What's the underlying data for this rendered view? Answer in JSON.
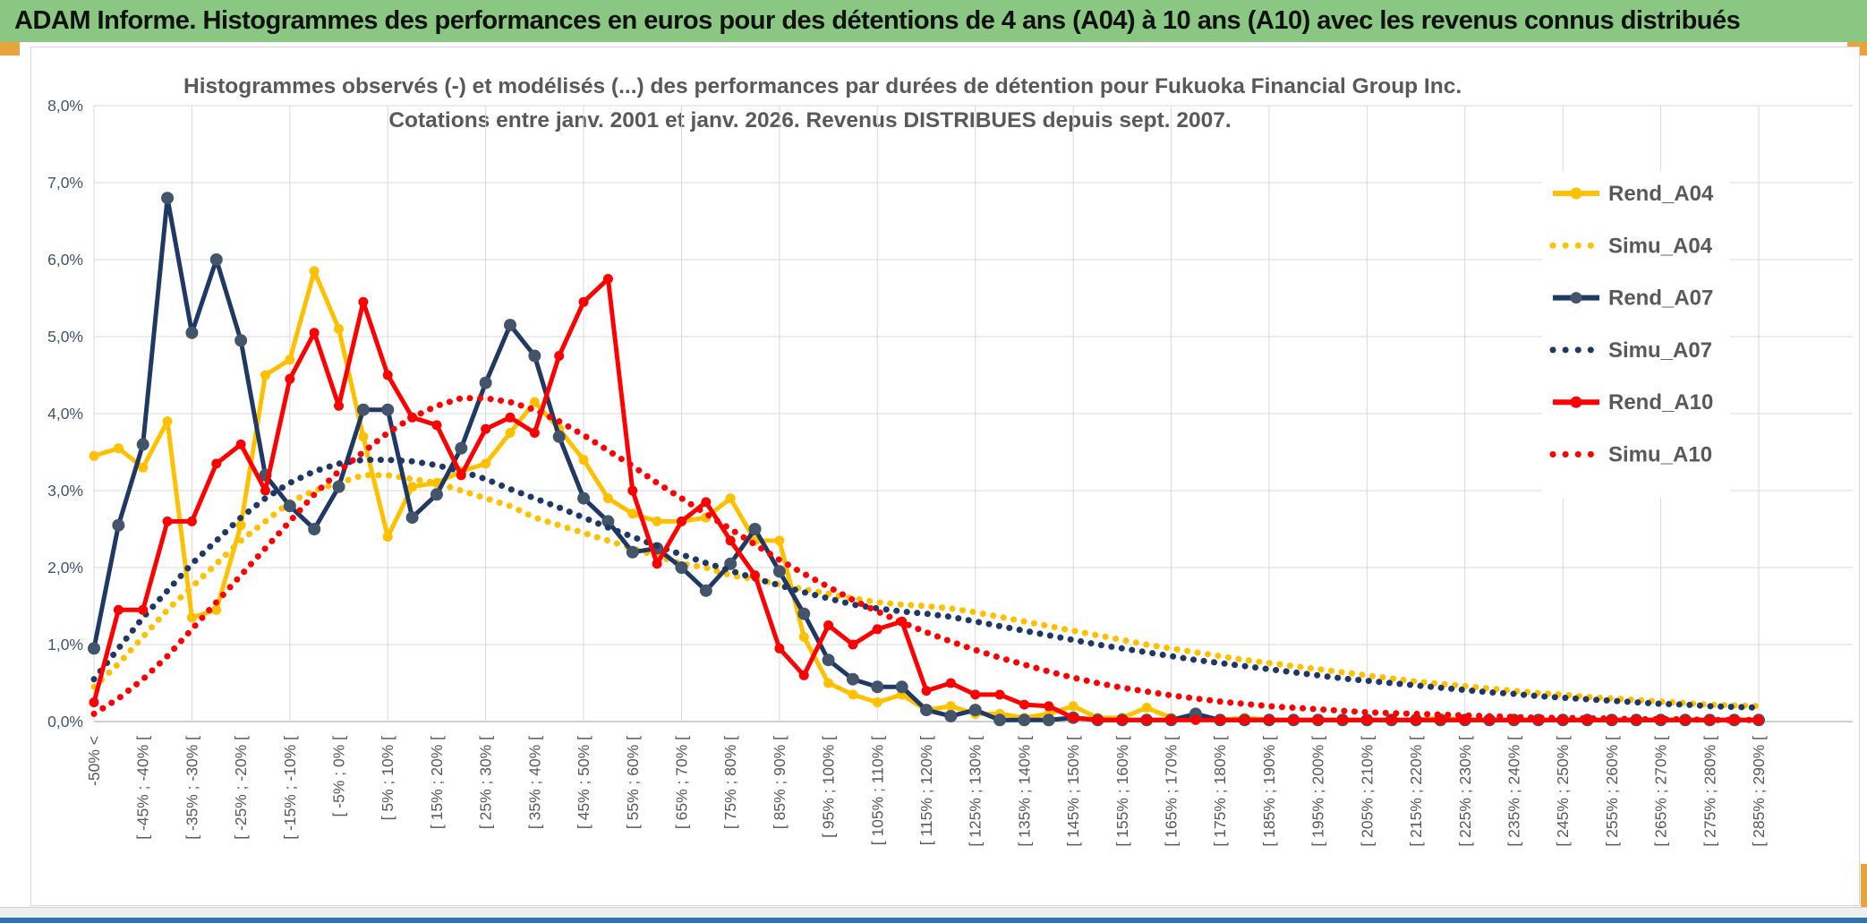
{
  "header": {
    "title": "ADAM Informe. Histogrammes des performances en euros pour des détentions de 4 ans (A04) à 10 ans (A10) avec les revenus connus distribués",
    "bg_color": "#89C782",
    "accent_color": "#E9A33B"
  },
  "chart_data": {
    "type": "line",
    "title": "Histogrammes observés (-) et modélisés (...) des performances par durées de détention pour Fukuoka Financial Group Inc.",
    "subtitle": "Cotations entre janv. 2001 et janv. 2026. Revenus DISTRIBUES depuis sept. 2007.",
    "ylim": [
      0,
      8
    ],
    "y_tick_labels": [
      "0,0%",
      "1,0%",
      "2,0%",
      "3,0%",
      "4,0%",
      "5,0%",
      "6,0%",
      "7,0%",
      "8,0%"
    ],
    "x_labels_every_other_bin": true,
    "n_points": 69,
    "grid": {
      "line_color": "#d9d9d9",
      "axis_color": "#bfbfbf",
      "label_color": "#595959",
      "y_label_color": "#44546A",
      "legend_text_color": "#595959"
    },
    "x_tick_labels": [
      "-50% <",
      "[ -45% ; -40% [",
      "[ -35% ; -30% [",
      "[ -25% ; -20% [",
      "[ -15% ; -10% [",
      "[ -5% ; 0% [",
      "[ 5% ; 10% [",
      "[ 15% ; 20% [",
      "[ 25% ; 30% [",
      "[ 35% ; 40% [",
      "[ 45% ; 50% [",
      "[ 55% ; 60% [",
      "[ 65% ; 70% [",
      "[ 75% ; 80% [",
      "[ 85% ; 90% [",
      "[ 95% ; 100% [",
      "[ 105% ; 110% [",
      "[ 115% ; 120% [",
      "[ 125% ; 130% [",
      "[ 135% ; 140% [",
      "[ 145% ; 150% [",
      "[ 155% ; 160% [",
      "[ 165% ; 170% [",
      "[ 175% ; 180% [",
      "[ 185% ; 190% [",
      "[ 195% ; 200% [",
      "[ 205% ; 210% [",
      "[ 215% ; 220% [",
      "[ 225% ; 230% [",
      "[ 235% ; 240% [",
      "[ 245% ; 250% [",
      "[ 255% ; 260% [",
      "[ 265% ; 270% [",
      "[ 275% ; 280% [",
      "[ 285% ; 290% ["
    ],
    "series": [
      {
        "name": "Rend_A04",
        "style": "solid",
        "color": "#FFC000",
        "marker_color": "#FFC000",
        "values": [
          3.45,
          3.55,
          3.3,
          3.9,
          1.35,
          1.45,
          2.55,
          4.5,
          4.7,
          5.85,
          5.1,
          3.7,
          2.4,
          3.05,
          3.1,
          3.25,
          3.35,
          3.75,
          4.15,
          3.8,
          3.4,
          2.9,
          2.7,
          2.6,
          2.6,
          2.65,
          2.9,
          2.35,
          2.35,
          1.1,
          0.5,
          0.35,
          0.25,
          0.35,
          0.15,
          0.2,
          0.1,
          0.1,
          0.05,
          0.1,
          0.2,
          0.05,
          0.05,
          0.18,
          0.05,
          0.02,
          0.02,
          0.05,
          0.02,
          0.02,
          0.02,
          0.02,
          0.02,
          0.02,
          0.02,
          0.05,
          0.02,
          0.02,
          0.02,
          0.02,
          0.02,
          0.02,
          0.02,
          0.02,
          0.02,
          0.02,
          0.02,
          0.02,
          0.02
        ]
      },
      {
        "name": "Simu_A04",
        "style": "dotted",
        "color": "#FFC000",
        "marker_color": "#FFC000",
        "values": [
          0.45,
          0.75,
          1.1,
          1.45,
          1.75,
          2.05,
          2.35,
          2.6,
          2.85,
          3.0,
          3.1,
          3.2,
          3.2,
          3.15,
          3.1,
          3.0,
          2.9,
          2.8,
          2.65,
          2.55,
          2.45,
          2.35,
          2.25,
          2.15,
          2.05,
          2.0,
          1.9,
          1.85,
          1.78,
          1.72,
          1.66,
          1.6,
          1.55,
          1.52,
          1.5,
          1.47,
          1.42,
          1.36,
          1.3,
          1.24,
          1.18,
          1.12,
          1.06,
          1.0,
          0.95,
          0.9,
          0.85,
          0.8,
          0.76,
          0.72,
          0.68,
          0.64,
          0.6,
          0.56,
          0.52,
          0.49,
          0.46,
          0.43,
          0.4,
          0.37,
          0.35,
          0.32,
          0.3,
          0.28,
          0.26,
          0.24,
          0.22,
          0.21,
          0.2
        ]
      },
      {
        "name": "Rend_A07",
        "style": "solid",
        "color": "#1F3864",
        "marker_color": "#44546A",
        "values": [
          0.95,
          2.55,
          3.6,
          6.8,
          5.05,
          6.0,
          4.95,
          3.2,
          2.8,
          2.5,
          3.05,
          4.05,
          4.05,
          2.65,
          2.95,
          3.55,
          4.4,
          5.15,
          4.75,
          3.7,
          2.9,
          2.6,
          2.2,
          2.25,
          2.0,
          1.7,
          2.05,
          2.5,
          1.95,
          1.4,
          0.8,
          0.55,
          0.45,
          0.45,
          0.15,
          0.07,
          0.15,
          0.02,
          0.02,
          0.02,
          0.05,
          0.02,
          0.02,
          0.02,
          0.02,
          0.1,
          0.02,
          0.02,
          0.02,
          0.02,
          0.02,
          0.02,
          0.02,
          0.02,
          0.02,
          0.02,
          0.02,
          0.02,
          0.02,
          0.02,
          0.02,
          0.02,
          0.02,
          0.02,
          0.02,
          0.02,
          0.02,
          0.02,
          0.02
        ]
      },
      {
        "name": "Simu_A07",
        "style": "dotted",
        "color": "#1F3864",
        "marker_color": "#1F3864",
        "values": [
          0.55,
          0.95,
          1.35,
          1.7,
          2.05,
          2.35,
          2.65,
          2.9,
          3.1,
          3.25,
          3.35,
          3.4,
          3.4,
          3.38,
          3.33,
          3.25,
          3.15,
          3.02,
          2.9,
          2.78,
          2.65,
          2.52,
          2.4,
          2.28,
          2.17,
          2.06,
          1.96,
          1.86,
          1.77,
          1.68,
          1.6,
          1.52,
          1.47,
          1.43,
          1.4,
          1.36,
          1.3,
          1.24,
          1.18,
          1.12,
          1.06,
          1.0,
          0.95,
          0.9,
          0.85,
          0.8,
          0.76,
          0.72,
          0.68,
          0.64,
          0.6,
          0.56,
          0.53,
          0.5,
          0.47,
          0.44,
          0.41,
          0.38,
          0.36,
          0.33,
          0.31,
          0.29,
          0.27,
          0.25,
          0.23,
          0.22,
          0.2,
          0.19,
          0.18
        ]
      },
      {
        "name": "Rend_A10",
        "style": "solid",
        "color": "#FF0000",
        "marker_color": "#FF0000",
        "values": [
          0.25,
          1.45,
          1.45,
          2.6,
          2.6,
          3.35,
          3.6,
          3.0,
          4.45,
          5.05,
          4.1,
          5.45,
          4.5,
          3.95,
          3.85,
          3.2,
          3.8,
          3.95,
          3.75,
          4.75,
          5.45,
          5.75,
          3.0,
          2.05,
          2.6,
          2.85,
          2.35,
          1.9,
          0.95,
          0.6,
          1.25,
          1.0,
          1.2,
          1.3,
          0.4,
          0.5,
          0.35,
          0.35,
          0.22,
          0.2,
          0.05,
          0.02,
          0.02,
          0.02,
          0.02,
          0.02,
          0.02,
          0.02,
          0.02,
          0.02,
          0.02,
          0.02,
          0.02,
          0.02,
          0.02,
          0.02,
          0.02,
          0.02,
          0.02,
          0.02,
          0.02,
          0.02,
          0.02,
          0.02,
          0.02,
          0.02,
          0.02,
          0.02,
          0.02
        ]
      },
      {
        "name": "Simu_A10",
        "style": "dotted",
        "color": "#FF0000",
        "marker_color": "#FF0000",
        "values": [
          0.1,
          0.3,
          0.55,
          0.85,
          1.2,
          1.55,
          1.9,
          2.25,
          2.6,
          2.95,
          3.25,
          3.5,
          3.75,
          3.95,
          4.1,
          4.2,
          4.2,
          4.15,
          4.05,
          3.9,
          3.72,
          3.52,
          3.32,
          3.1,
          2.9,
          2.7,
          2.5,
          2.3,
          2.1,
          1.92,
          1.75,
          1.58,
          1.43,
          1.29,
          1.16,
          1.04,
          0.93,
          0.83,
          0.74,
          0.65,
          0.57,
          0.5,
          0.44,
          0.39,
          0.34,
          0.3,
          0.26,
          0.23,
          0.2,
          0.18,
          0.16,
          0.14,
          0.12,
          0.11,
          0.1,
          0.09,
          0.08,
          0.07,
          0.06,
          0.05,
          0.05,
          0.04,
          0.04,
          0.03,
          0.03,
          0.03,
          0.02,
          0.02,
          0.02
        ]
      }
    ],
    "legend": {
      "position": "right",
      "items": [
        {
          "label": "Rend_A04"
        },
        {
          "label": "Simu_A04"
        },
        {
          "label": "Rend_A07"
        },
        {
          "label": "Simu_A07"
        },
        {
          "label": "Rend_A10"
        },
        {
          "label": "Simu_A10"
        }
      ]
    }
  }
}
